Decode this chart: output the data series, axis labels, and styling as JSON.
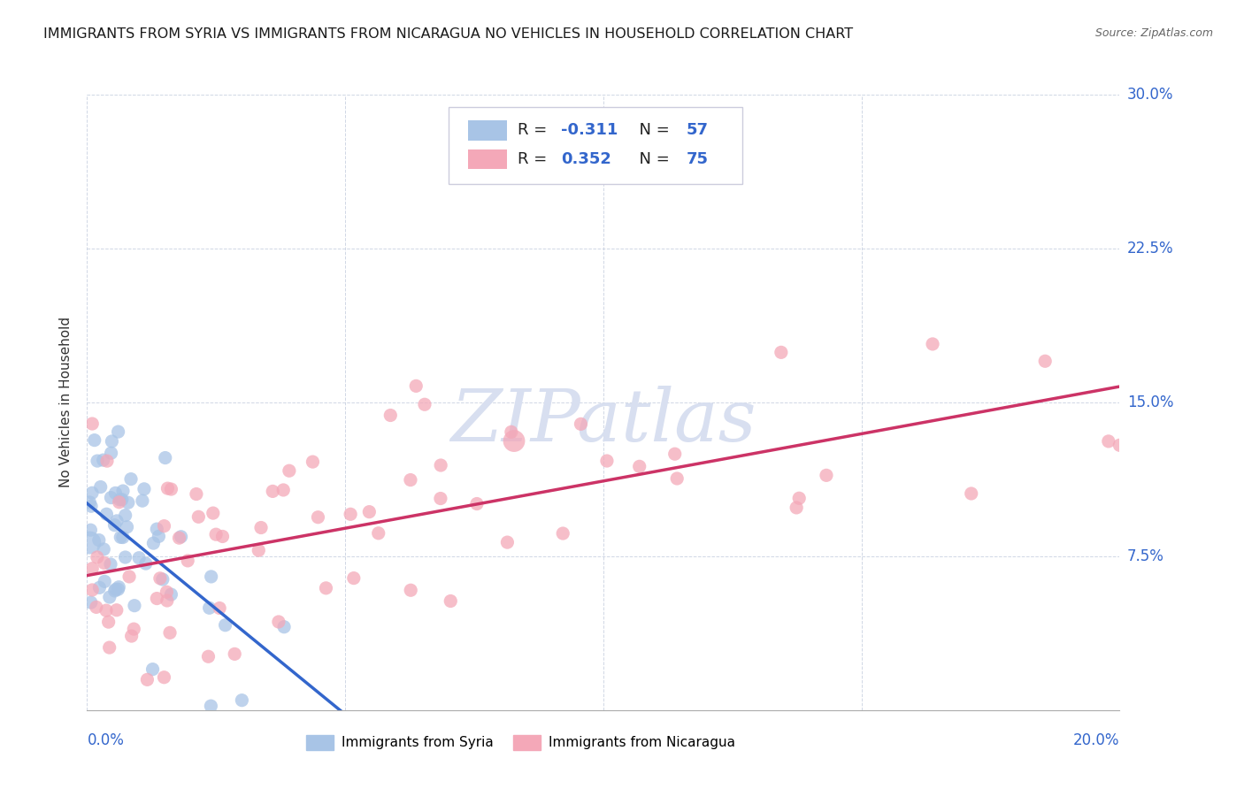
{
  "title": "IMMIGRANTS FROM SYRIA VS IMMIGRANTS FROM NICARAGUA NO VEHICLES IN HOUSEHOLD CORRELATION CHART",
  "source": "Source: ZipAtlas.com",
  "ylabel": "No Vehicles in Household",
  "R_syria": -0.311,
  "N_syria": 57,
  "R_nicaragua": 0.352,
  "N_nicaragua": 75,
  "color_syria": "#a8c4e6",
  "color_nicaragua": "#f4a8b8",
  "color_syria_line": "#3366cc",
  "color_nicaragua_line": "#cc3366",
  "watermark_color": "#d8dff0",
  "background_color": "#ffffff",
  "grid_color": "#c8d0e0",
  "axis_label_color": "#3366cc",
  "text_color": "#333333",
  "xlim": [
    0,
    0.2
  ],
  "ylim": [
    0,
    0.3
  ],
  "x_left_label": "0.0%",
  "x_right_label": "20.0%",
  "y_tick_vals": [
    0.075,
    0.15,
    0.225,
    0.3
  ],
  "y_tick_labels": [
    "7.5%",
    "15.0%",
    "22.5%",
    "30.0%"
  ],
  "legend1_label": "Immigrants from Syria",
  "legend2_label": "Immigrants from Nicaragua"
}
